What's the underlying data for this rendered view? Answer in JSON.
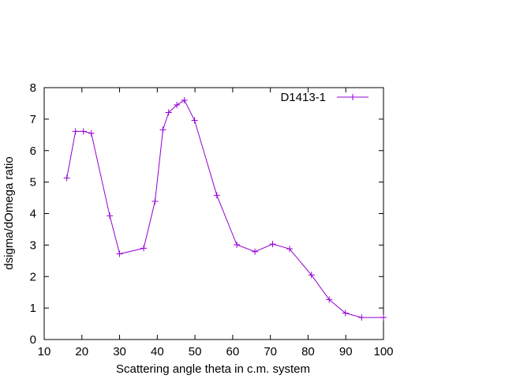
{
  "chart_data": {
    "type": "line",
    "title": "",
    "xlabel": "Scattering angle theta in c.m. system",
    "ylabel": "dsigma/dOmega ratio",
    "xlim": [
      10,
      100
    ],
    "ylim": [
      0,
      8
    ],
    "xticks": [
      10,
      20,
      30,
      40,
      50,
      60,
      70,
      80,
      90,
      100
    ],
    "yticks": [
      0,
      1,
      2,
      3,
      4,
      5,
      6,
      7,
      8
    ],
    "grid": false,
    "legend_position": "top-right",
    "series": [
      {
        "name": "D1413-1",
        "color": "#9400d3",
        "marker": "plus",
        "x": [
          16.0,
          18.3,
          20.4,
          22.5,
          27.4,
          30.0,
          36.4,
          39.4,
          41.5,
          43.0,
          45.2,
          47.2,
          49.9,
          55.8,
          61.1,
          65.9,
          70.6,
          75.1,
          80.9,
          85.6,
          89.9,
          94.2,
          100.0
        ],
        "y": [
          5.13,
          6.61,
          6.61,
          6.55,
          3.93,
          2.72,
          2.9,
          4.39,
          6.66,
          7.21,
          7.45,
          7.6,
          6.96,
          4.58,
          3.01,
          2.79,
          3.03,
          2.88,
          2.05,
          1.27,
          0.84,
          0.7,
          0.7
        ]
      }
    ]
  }
}
